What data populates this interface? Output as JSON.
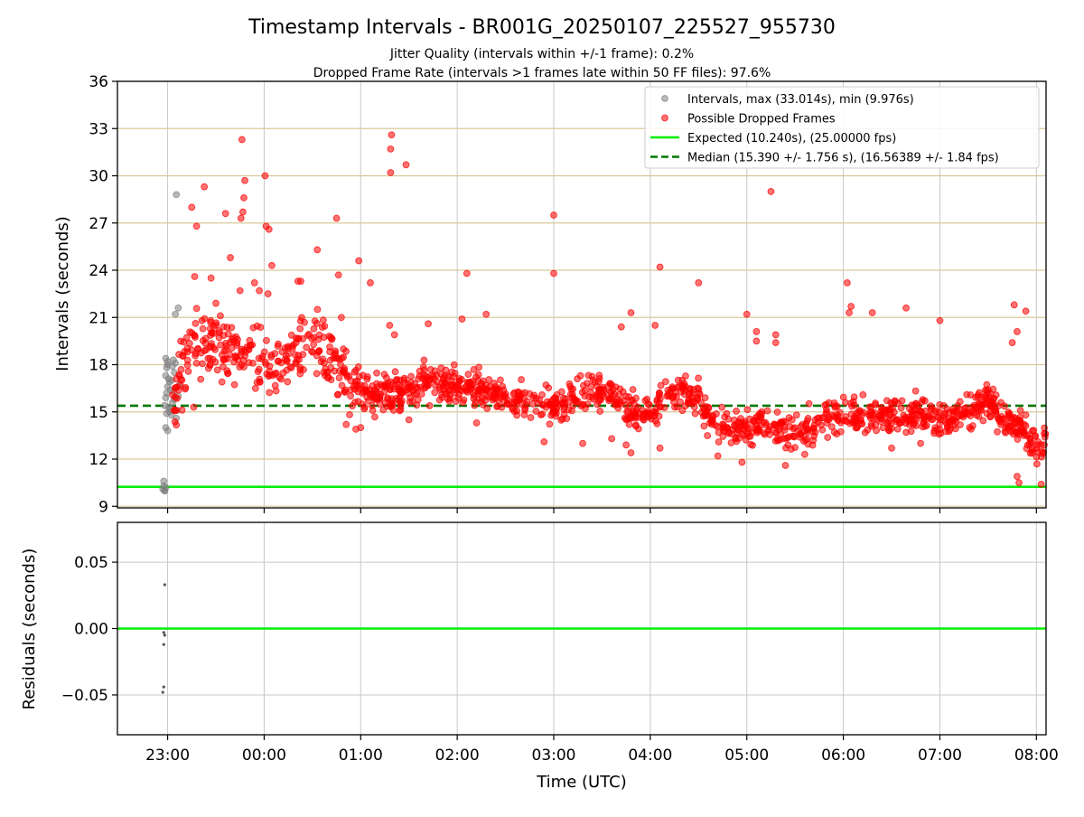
{
  "chart_data": {
    "title": "Timestamp Intervals - BR001G_20250107_225527_955730",
    "subtitle_lines": [
      "Jitter Quality (intervals within +/-1 frame): 0.2%",
      "Dropped Frame Rate (intervals >1 frames late within 50 FF files): 97.6%"
    ],
    "x_axis": {
      "label": "Time (UTC)",
      "unit": "hours since 00:00 UTC (23:00 = -1)",
      "range": [
        -1.52,
        8.1
      ],
      "ticks": [
        -1,
        0,
        1,
        2,
        3,
        4,
        5,
        6,
        7,
        8
      ],
      "tick_labels": [
        "23:00",
        "00:00",
        "01:00",
        "02:00",
        "03:00",
        "04:00",
        "05:00",
        "06:00",
        "07:00",
        "08:00"
      ]
    },
    "panels": [
      {
        "type": "scatter",
        "ylabel": "Intervals (seconds)",
        "ylim": [
          8.9,
          36
        ],
        "yticks": [
          9,
          12,
          15,
          18,
          21,
          24,
          27,
          30,
          33,
          36
        ],
        "ytick_labels": [
          "9",
          "12",
          "15",
          "18",
          "21",
          "24",
          "27",
          "30",
          "33",
          "36"
        ],
        "grid": "horizontal tan gridlines, vertical grey gridlines",
        "legend": {
          "placement": "top-right",
          "entries": [
            {
              "label": "Intervals, max (33.014s), min (9.976s)",
              "marker": "circle",
              "color": "#808080"
            },
            {
              "label": "Possible Dropped Frames",
              "marker": "circle",
              "color": "#ff0000"
            },
            {
              "label": "Expected (10.240s), (25.00000 fps)",
              "marker": "line",
              "color": "#00ee00"
            },
            {
              "label": "Median (15.390 +/- 1.756 s), (16.56389 +/- 1.84 fps)",
              "marker": "dashed-line",
              "color": "#007700"
            }
          ]
        },
        "reference_lines": [
          {
            "name": "expected",
            "y": 10.24,
            "color": "#00ee00",
            "style": "solid"
          },
          {
            "name": "median",
            "y": 15.39,
            "color": "#007700",
            "style": "dashed"
          }
        ],
        "series": [
          {
            "name": "Intervals, max (33.014s), min (9.976s)",
            "color": "#808080",
            "points": [
              [
                -1.04,
                10.6
              ],
              [
                -1.05,
                10.1
              ],
              [
                -1.03,
                10.0
              ],
              [
                -1.02,
                10.2
              ],
              [
                -1.04,
                10.3
              ],
              [
                -1.03,
                9.98
              ],
              [
                -1.02,
                14.0
              ],
              [
                -1.0,
                13.8
              ],
              [
                -1.03,
                15.4
              ],
              [
                -1.02,
                15.9
              ],
              [
                -1.01,
                16.2
              ],
              [
                -1.0,
                16.6
              ],
              [
                -0.99,
                17.1
              ],
              [
                -1.02,
                17.3
              ],
              [
                -1.01,
                17.8
              ],
              [
                -1.0,
                18.2
              ],
              [
                -1.02,
                18.4
              ],
              [
                -1.0,
                18.0
              ],
              [
                -0.98,
                16.9
              ],
              [
                -0.97,
                15.2
              ],
              [
                -0.96,
                14.8
              ],
              [
                -0.95,
                15.6
              ],
              [
                -0.94,
                16.3
              ],
              [
                -0.93,
                17.5
              ],
              [
                -0.92,
                18.1
              ],
              [
                -0.94,
                18.3
              ],
              [
                -0.96,
                17.0
              ],
              [
                -0.98,
                15.0
              ],
              [
                -0.91,
                14.6
              ],
              [
                -0.9,
                15.1
              ],
              [
                -0.89,
                16.0
              ],
              [
                -0.88,
                16.7
              ],
              [
                -0.92,
                21.2
              ],
              [
                -0.89,
                21.6
              ],
              [
                -0.91,
                28.8
              ],
              [
                -0.93,
                15.8
              ],
              [
                -0.97,
                16.4
              ],
              [
                -1.01,
                14.9
              ],
              [
                -0.95,
                17.9
              ],
              [
                -0.99,
                15.3
              ]
            ]
          },
          {
            "name": "Possible Dropped Frames",
            "color": "#ff0000",
            "band": [
              [
                -0.95,
                15.5
              ],
              [
                -0.85,
                17.5
              ],
              [
                -0.75,
                19.0
              ],
              [
                -0.6,
                19.3
              ],
              [
                -0.45,
                19.2
              ],
              [
                -0.3,
                18.8
              ],
              [
                -0.15,
                18.5
              ],
              [
                0.0,
                18.2
              ],
              [
                0.15,
                18.1
              ],
              [
                0.3,
                18.6
              ],
              [
                0.45,
                19.1
              ],
              [
                0.6,
                18.9
              ],
              [
                0.75,
                17.9
              ],
              [
                0.85,
                16.7
              ],
              [
                1.0,
                16.2
              ],
              [
                1.2,
                16.1
              ],
              [
                1.4,
                16.4
              ],
              [
                1.6,
                16.6
              ],
              [
                1.8,
                16.9
              ],
              [
                2.0,
                16.7
              ],
              [
                2.2,
                16.4
              ],
              [
                2.4,
                16.2
              ],
              [
                2.6,
                15.8
              ],
              [
                2.8,
                15.4
              ],
              [
                3.0,
                15.3
              ],
              [
                3.2,
                15.7
              ],
              [
                3.4,
                16.5
              ],
              [
                3.6,
                16.1
              ],
              [
                3.8,
                15.1
              ],
              [
                4.0,
                14.8
              ],
              [
                4.15,
                16.0
              ],
              [
                4.3,
                16.2
              ],
              [
                4.5,
                16.0
              ],
              [
                4.6,
                14.6
              ],
              [
                4.8,
                14.0
              ],
              [
                5.0,
                13.8
              ],
              [
                5.2,
                14.3
              ],
              [
                5.4,
                13.6
              ],
              [
                5.6,
                13.8
              ],
              [
                5.8,
                14.7
              ],
              [
                6.0,
                15.0
              ],
              [
                6.2,
                14.8
              ],
              [
                6.4,
                14.7
              ],
              [
                6.6,
                14.9
              ],
              [
                6.8,
                15.0
              ],
              [
                7.0,
                14.5
              ],
              [
                7.2,
                14.8
              ],
              [
                7.4,
                15.4
              ],
              [
                7.5,
                15.8
              ],
              [
                7.6,
                15.1
              ],
              [
                7.7,
                14.4
              ],
              [
                7.85,
                13.9
              ],
              [
                7.95,
                13.0
              ],
              [
                8.05,
                12.0
              ],
              [
                8.1,
                14.4
              ]
            ],
            "outliers": [
              [
                -0.75,
                28.0
              ],
              [
                -0.7,
                26.8
              ],
              [
                -0.62,
                29.3
              ],
              [
                -0.55,
                23.5
              ],
              [
                -0.72,
                23.6
              ],
              [
                -0.5,
                21.9
              ],
              [
                -0.4,
                27.6
              ],
              [
                -0.35,
                24.8
              ],
              [
                -0.23,
                32.3
              ],
              [
                -0.2,
                29.7
              ],
              [
                -0.21,
                28.6
              ],
              [
                -0.22,
                27.7
              ],
              [
                -0.24,
                27.3
              ],
              [
                -0.25,
                22.7
              ],
              [
                -0.1,
                23.2
              ],
              [
                -0.05,
                22.7
              ],
              [
                0.01,
                30.0
              ],
              [
                0.02,
                26.8
              ],
              [
                0.05,
                26.6
              ],
              [
                0.08,
                24.3
              ],
              [
                0.04,
                22.5
              ],
              [
                0.35,
                23.3
              ],
              [
                0.38,
                23.3
              ],
              [
                0.55,
                25.3
              ],
              [
                0.75,
                27.3
              ],
              [
                0.77,
                23.7
              ],
              [
                0.8,
                21.0
              ],
              [
                0.98,
                24.6
              ],
              [
                1.1,
                23.2
              ],
              [
                1.32,
                32.6
              ],
              [
                1.31,
                31.7
              ],
              [
                1.31,
                30.2
              ],
              [
                1.47,
                30.7
              ],
              [
                1.3,
                20.5
              ],
              [
                1.35,
                19.9
              ],
              [
                1.7,
                20.6
              ],
              [
                2.1,
                23.8
              ],
              [
                2.05,
                20.9
              ],
              [
                2.3,
                21.2
              ],
              [
                3.0,
                27.5
              ],
              [
                3.0,
                23.8
              ],
              [
                3.7,
                20.4
              ],
              [
                3.8,
                21.3
              ],
              [
                4.1,
                24.2
              ],
              [
                4.05,
                20.5
              ],
              [
                4.5,
                23.2
              ],
              [
                5.0,
                21.2
              ],
              [
                5.25,
                29.0
              ],
              [
                5.1,
                20.1
              ],
              [
                5.1,
                19.5
              ],
              [
                5.3,
                19.9
              ],
              [
                5.3,
                19.4
              ],
              [
                6.04,
                23.2
              ],
              [
                6.08,
                21.7
              ],
              [
                6.06,
                21.3
              ],
              [
                6.3,
                21.3
              ],
              [
                6.65,
                21.6
              ],
              [
                7.0,
                20.8
              ],
              [
                7.77,
                21.8
              ],
              [
                7.89,
                21.4
              ],
              [
                7.8,
                20.1
              ],
              [
                7.75,
                19.4
              ],
              [
                3.8,
                12.4
              ],
              [
                3.75,
                12.9
              ],
              [
                4.1,
                12.7
              ],
              [
                4.7,
                12.2
              ],
              [
                4.95,
                11.8
              ],
              [
                5.4,
                11.6
              ],
              [
                5.6,
                12.3
              ],
              [
                6.5,
                12.7
              ],
              [
                6.8,
                13.0
              ],
              [
                7.8,
                10.9
              ],
              [
                7.82,
                10.5
              ],
              [
                8.05,
                10.4
              ],
              [
                -0.73,
                15.3
              ],
              [
                0.85,
                14.2
              ],
              [
                0.95,
                13.9
              ],
              [
                1.0,
                14.0
              ],
              [
                1.5,
                14.5
              ],
              [
                2.2,
                14.3
              ],
              [
                2.9,
                13.1
              ],
              [
                3.3,
                13.0
              ],
              [
                3.6,
                13.3
              ]
            ]
          }
        ]
      },
      {
        "type": "scatter",
        "ylabel": "Residuals (seconds)",
        "ylim": [
          -0.08,
          0.08
        ],
        "yticks": [
          -0.05,
          0.0,
          0.05
        ],
        "ytick_labels": [
          "−0.05",
          "0.00",
          "0.05"
        ],
        "grid": "grey gridlines",
        "reference_lines": [
          {
            "name": "zero",
            "y": 0.0,
            "color": "#00ee00",
            "style": "solid"
          }
        ],
        "series": [
          {
            "name": "residuals",
            "color": "#555555",
            "points": [
              [
                -1.03,
                0.033
              ],
              [
                -1.04,
                -0.003
              ],
              [
                -1.03,
                -0.005
              ],
              [
                -1.04,
                -0.012
              ],
              [
                -1.04,
                -0.044
              ],
              [
                -1.05,
                -0.048
              ]
            ]
          }
        ]
      }
    ]
  }
}
